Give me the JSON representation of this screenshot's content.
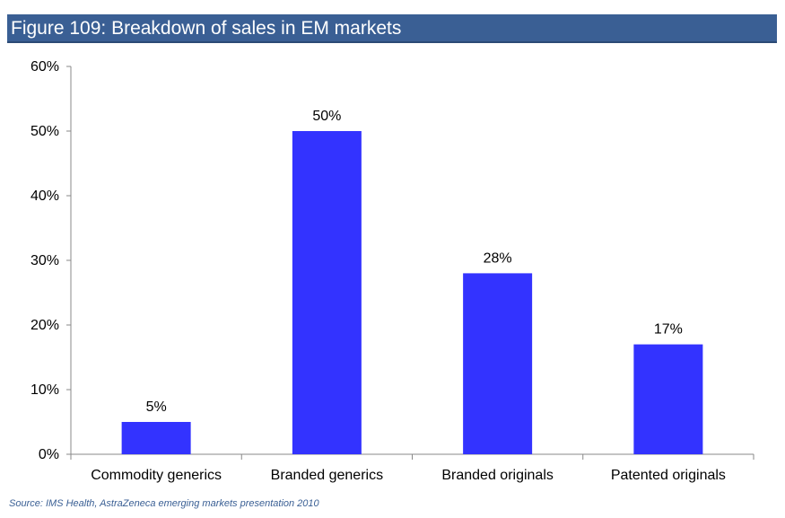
{
  "chart_data": {
    "type": "bar",
    "title": "Figure 109: Breakdown of sales in EM markets",
    "categories": [
      "Commodity generics",
      "Branded generics",
      "Branded originals",
      "Patented originals"
    ],
    "values": [
      5,
      50,
      28,
      17
    ],
    "data_labels": [
      "5%",
      "50%",
      "28%",
      "17%"
    ],
    "y_ticks": [
      "0%",
      "10%",
      "20%",
      "30%",
      "40%",
      "50%",
      "60%"
    ],
    "ylim": [
      0,
      60
    ],
    "xlabel": "",
    "ylabel": "",
    "grid": false,
    "legend": "none",
    "bar_color": "#3333ff",
    "source": "Source: IMS Health, AstraZeneca emerging markets presentation 2010"
  },
  "colors": {
    "title_bar": "#3a5f94",
    "axis": "#888888",
    "text": "#000000"
  }
}
